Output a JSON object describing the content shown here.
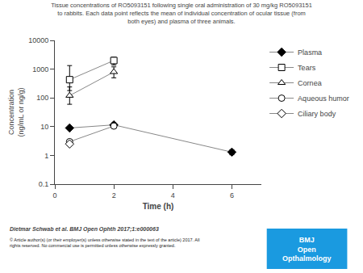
{
  "chart_data": {
    "type": "line",
    "title": "Tissue concentrations of RO5093151 following single oral administration of 30 mg/kg RO5093151\nto rabbits. Each data point reflects the mean of individual concentration of ocular tissue (from\nboth eyes) and plasma of three animals.",
    "x_label": "Time (h)",
    "y_label": "Concentration\n(ng/mL or ng/g)",
    "xlim": [
      0,
      7
    ],
    "xticks": [
      0,
      2,
      4,
      6
    ],
    "ylim": [
      0.1,
      10000
    ],
    "yticks": [
      0.1,
      1,
      10,
      100,
      1000,
      10000
    ],
    "log": "y",
    "grid": false,
    "legend": "right",
    "series": [
      {
        "name": "Plasma",
        "x": [
          0.5,
          2,
          6
        ],
        "values": [
          9.0,
          11.5,
          1.3
        ],
        "error_low": [
          0.0,
          2.0,
          0.25
        ],
        "error_high": [
          0.0,
          2.0,
          0.25
        ],
        "color": "#888888",
        "marker": "diamond"
      },
      {
        "name": "Tears",
        "x": [
          0.5,
          2
        ],
        "values": [
          430,
          2000
        ],
        "error_low": [
          250,
          600
        ],
        "error_high": [
          900,
          600
        ],
        "color": "#888888",
        "marker": "square-open"
      },
      {
        "name": "Cornea",
        "x": [
          0.5,
          2
        ],
        "values": [
          120,
          800
        ],
        "error_low": [
          60,
          300
        ],
        "error_high": [
          120,
          400
        ],
        "color": "#888888",
        "marker": "triangle-up-open"
      },
      {
        "name": "Aqueous humor",
        "x": [
          0.5,
          2
        ],
        "values": [
          3.0,
          10.5
        ],
        "error_low": [
          0,
          0
        ],
        "error_high": [
          0,
          0
        ],
        "color": "#888888",
        "marker": "circle-open"
      },
      {
        "name": "Ciliary body",
        "x": [
          0.5
        ],
        "values": [
          2.5
        ],
        "error_low": [
          0
        ],
        "error_high": [
          0
        ],
        "color": "#888888",
        "marker": "diamond-open"
      }
    ],
    "annotations": [
      {
        "text": "Dietmar Schwab et al. BMJ Open Ophth 2017;1:e000063"
      },
      {
        "text": "© Article author(s) (or their employer(s) unless otherwise stated in the text of the article) 2017. All\nrights reserved. No commercial use is permitted unless otherwise expressly granted."
      },
      {
        "text": "BMJ\nOpen\nOpthalmology",
        "color": "#1A9AE0"
      }
    ]
  }
}
